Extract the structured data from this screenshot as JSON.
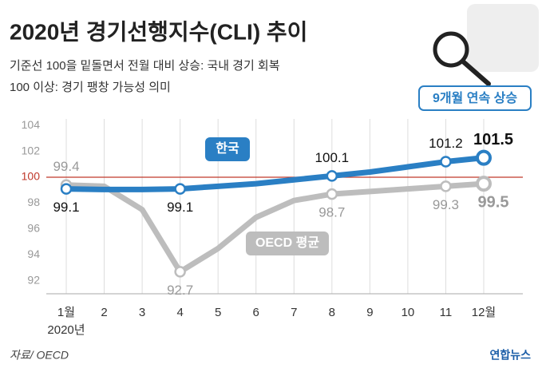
{
  "chart_data": {
    "type": "line",
    "title": "2020년 경기선행지수(CLI) 추이",
    "subtitle": [
      "기준선 100을 밑돌면서 전월 대비 상승: 국내 경기 회복",
      "100 이상: 경기 팽창 가능성 의미"
    ],
    "annotation": "9개월 연속 상승",
    "categories": [
      "1월",
      "2",
      "3",
      "4",
      "5",
      "6",
      "7",
      "8",
      "9",
      "10",
      "11",
      "12월"
    ],
    "year_label": "2020년",
    "series": [
      {
        "name": "OECD 평균",
        "color": "#bdbdbd",
        "values": [
          99.4,
          99.3,
          97.5,
          92.7,
          94.5,
          96.9,
          98.2,
          98.7,
          98.9,
          99.1,
          99.3,
          99.5
        ],
        "value_labels": [
          "99.4",
          null,
          null,
          "92.7",
          null,
          null,
          null,
          "98.7",
          null,
          null,
          "99.3",
          "99.5"
        ]
      },
      {
        "name": "한국",
        "color": "#2a7fc4",
        "values": [
          99.1,
          99.05,
          99.05,
          99.1,
          99.3,
          99.5,
          99.8,
          100.1,
          100.4,
          100.8,
          101.2,
          101.5
        ],
        "value_labels": [
          "99.1",
          null,
          null,
          "99.1",
          null,
          null,
          null,
          "100.1",
          null,
          null,
          "101.2",
          "101.5"
        ]
      }
    ],
    "ylim": [
      91,
      104.5
    ],
    "yticks": [
      92,
      94,
      96,
      98,
      100,
      102,
      104
    ],
    "reference_line": 100,
    "reference_color": "#c0392b",
    "grid": true,
    "source": "자료/ OECD",
    "logo": "연합뉴스"
  }
}
